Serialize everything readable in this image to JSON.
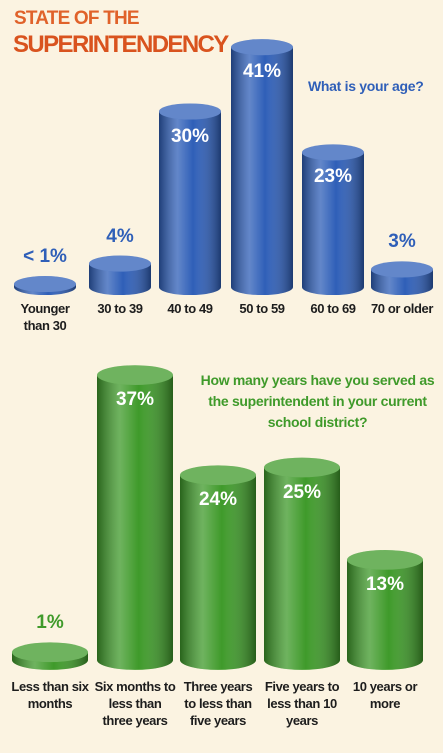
{
  "header": {
    "line1": "STATE OF THE",
    "line2": "SUPERINTENDENCY"
  },
  "chart_data": [
    {
      "type": "bar",
      "title": "What is your age?",
      "color": "#2f5fb8",
      "categories": [
        "Younger than 30",
        "30 to 39",
        "40 to 49",
        "50 to 59",
        "60 to 69",
        "70 or older"
      ],
      "values": [
        0.5,
        4,
        30,
        41,
        23,
        3
      ],
      "value_labels": [
        "< 1%",
        "4%",
        "30%",
        "41%",
        "23%",
        "3%"
      ]
    },
    {
      "type": "bar",
      "title": "How many years have you served as the superintendent in your current school district?",
      "color": "#3f9a2a",
      "categories": [
        "Less than six months",
        "Six months to less than three years",
        "Three years to less than five years",
        "Five years to less than 10 years",
        "10 years or more"
      ],
      "values": [
        1,
        37,
        24,
        25,
        13
      ],
      "value_labels": [
        "1%",
        "37%",
        "24%",
        "25%",
        "13%"
      ]
    }
  ]
}
